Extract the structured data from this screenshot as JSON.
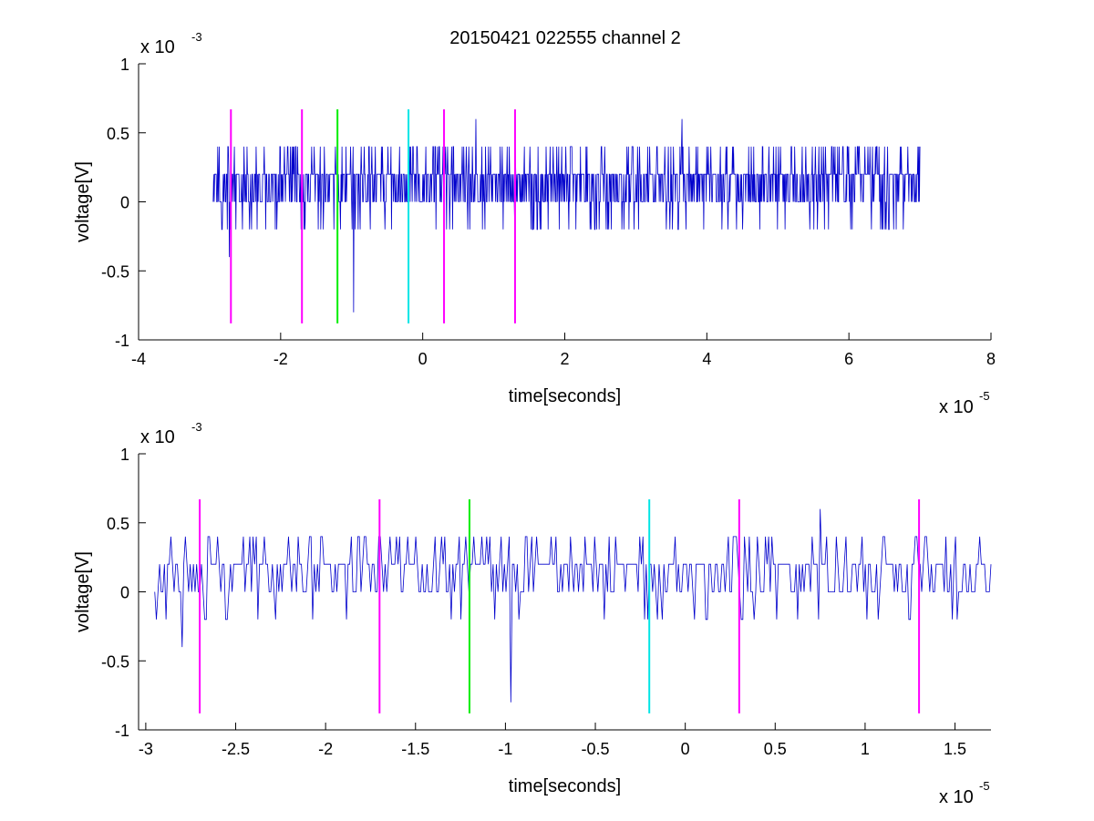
{
  "title": "20150421 022555 channel 2",
  "colors": {
    "signal": "#0000cc",
    "marker_magenta": "#ff00ff",
    "marker_green": "#00ee00",
    "marker_cyan": "#00e5e5",
    "axis": "#000000"
  },
  "chart_data": [
    {
      "type": "line",
      "xlabel": "time[seconds]",
      "ylabel": "voltage[V]",
      "x_exponent_label": "x 10",
      "x_exponent": "-5",
      "y_exponent_label": "x 10",
      "y_exponent": "-3",
      "xlim": [
        -4,
        8
      ],
      "ylim": [
        -1,
        1
      ],
      "xticks": [
        -4,
        -2,
        0,
        2,
        4,
        6,
        8
      ],
      "xtick_labels": [
        "-4",
        "-2",
        "0",
        "2",
        "4",
        "6",
        "8"
      ],
      "yticks": [
        -1,
        -0.5,
        0,
        0.5,
        1
      ],
      "ytick_labels": [
        "-1",
        "-0.5",
        "0",
        "0.5",
        "1"
      ],
      "grid": false,
      "signal": {
        "x_range": [
          -2.95,
          7.0
        ],
        "levels": [
          -0.2,
          0,
          0.2,
          0.4
        ],
        "baseline": 0.2,
        "spikes": [
          {
            "x": -2.72,
            "y": -0.4
          },
          {
            "x": -0.97,
            "y": -0.8
          },
          {
            "x": 0.75,
            "y": 0.6
          },
          {
            "x": 3.65,
            "y": 0.6
          }
        ]
      },
      "markers": [
        {
          "x": -2.7,
          "ymin": -0.88,
          "ymax": 0.67,
          "color": "magenta"
        },
        {
          "x": -1.7,
          "ymin": -0.88,
          "ymax": 0.67,
          "color": "magenta"
        },
        {
          "x": -1.2,
          "ymin": -0.88,
          "ymax": 0.67,
          "color": "green"
        },
        {
          "x": -0.2,
          "ymin": -0.88,
          "ymax": 0.67,
          "color": "cyan"
        },
        {
          "x": 0.3,
          "ymin": -0.88,
          "ymax": 0.67,
          "color": "magenta"
        },
        {
          "x": 1.3,
          "ymin": -0.88,
          "ymax": 0.67,
          "color": "magenta"
        }
      ]
    },
    {
      "type": "line",
      "xlabel": "time[seconds]",
      "ylabel": "voltage[V]",
      "x_exponent_label": "x 10",
      "x_exponent": "-5",
      "y_exponent_label": "x 10",
      "y_exponent": "-3",
      "xlim": [
        -3.04,
        1.7
      ],
      "ylim": [
        -1,
        1
      ],
      "xticks": [
        -3,
        -2.5,
        -2,
        -1.5,
        -1,
        -0.5,
        0,
        0.5,
        1,
        1.5
      ],
      "xtick_labels": [
        "-3",
        "-2.5",
        "-2",
        "-1.5",
        "-1",
        "-0.5",
        "0",
        "0.5",
        "1",
        "1.5"
      ],
      "yticks": [
        -1,
        -0.5,
        0,
        0.5,
        1
      ],
      "ytick_labels": [
        "-1",
        "-0.5",
        "0",
        "0.5",
        "1"
      ],
      "grid": false,
      "signal": {
        "x_range": [
          -2.95,
          1.7
        ],
        "levels": [
          -0.2,
          0,
          0.2,
          0.4
        ],
        "baseline": 0.2,
        "spikes": [
          {
            "x": -2.8,
            "y": -0.4
          },
          {
            "x": -0.97,
            "y": -0.8
          },
          {
            "x": 0.75,
            "y": 0.6
          }
        ]
      },
      "markers": [
        {
          "x": -2.7,
          "ymin": -0.88,
          "ymax": 0.67,
          "color": "magenta"
        },
        {
          "x": -1.7,
          "ymin": -0.88,
          "ymax": 0.67,
          "color": "magenta"
        },
        {
          "x": -1.2,
          "ymin": -0.88,
          "ymax": 0.67,
          "color": "green"
        },
        {
          "x": -0.2,
          "ymin": -0.88,
          "ymax": 0.67,
          "color": "cyan"
        },
        {
          "x": 0.3,
          "ymin": -0.88,
          "ymax": 0.67,
          "color": "magenta"
        },
        {
          "x": 1.3,
          "ymin": -0.88,
          "ymax": 0.67,
          "color": "magenta"
        }
      ]
    }
  ]
}
